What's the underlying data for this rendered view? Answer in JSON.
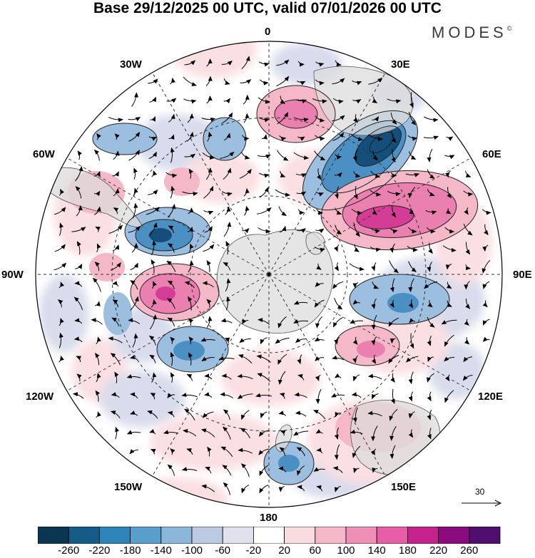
{
  "title": "Base 29/12/2025 00 UTC, valid 07/01/2026 00 UTC",
  "brand": {
    "name": "MODES",
    "mark": "©"
  },
  "longitude_labels": {
    "lon_0": "0",
    "lon_30e": "30E",
    "lon_60e": "60E",
    "lon_90e": "90E",
    "lon_120e": "120E",
    "lon_150e": "150E",
    "lon_180": "180",
    "lon_150w": "150W",
    "lon_120w": "120W",
    "lon_90w": "90W",
    "lon_60w": "60W",
    "lon_30w": "30W"
  },
  "reference_vector": {
    "label": "30"
  },
  "colorbar": {
    "ticks": [
      "-260",
      "-220",
      "-180",
      "-140",
      "-100",
      "-60",
      "-20",
      "20",
      "60",
      "100",
      "140",
      "180",
      "220",
      "260"
    ],
    "colors": [
      "#0b3653",
      "#145b87",
      "#2f84b8",
      "#5a9fcb",
      "#8cb7da",
      "#bccbe3",
      "#e1e1ee",
      "#ffffff",
      "#f8dcdf",
      "#f5b8c8",
      "#ef8fb6",
      "#e65fa6",
      "#c4238e",
      "#8b0b7e",
      "#4f0f6e"
    ]
  },
  "color_scale": {
    "neg_strong": "#134f7a",
    "neg_med": "#4b90c3",
    "neg_light": "#9cbedf",
    "neg_faint": "#d9dcec",
    "pos_faint": "#fadfe3",
    "pos_light": "#f5b8c8",
    "pos_med": "#ea80b0",
    "pos_strong": "#d43c96",
    "land": "#dcdcdc"
  }
}
